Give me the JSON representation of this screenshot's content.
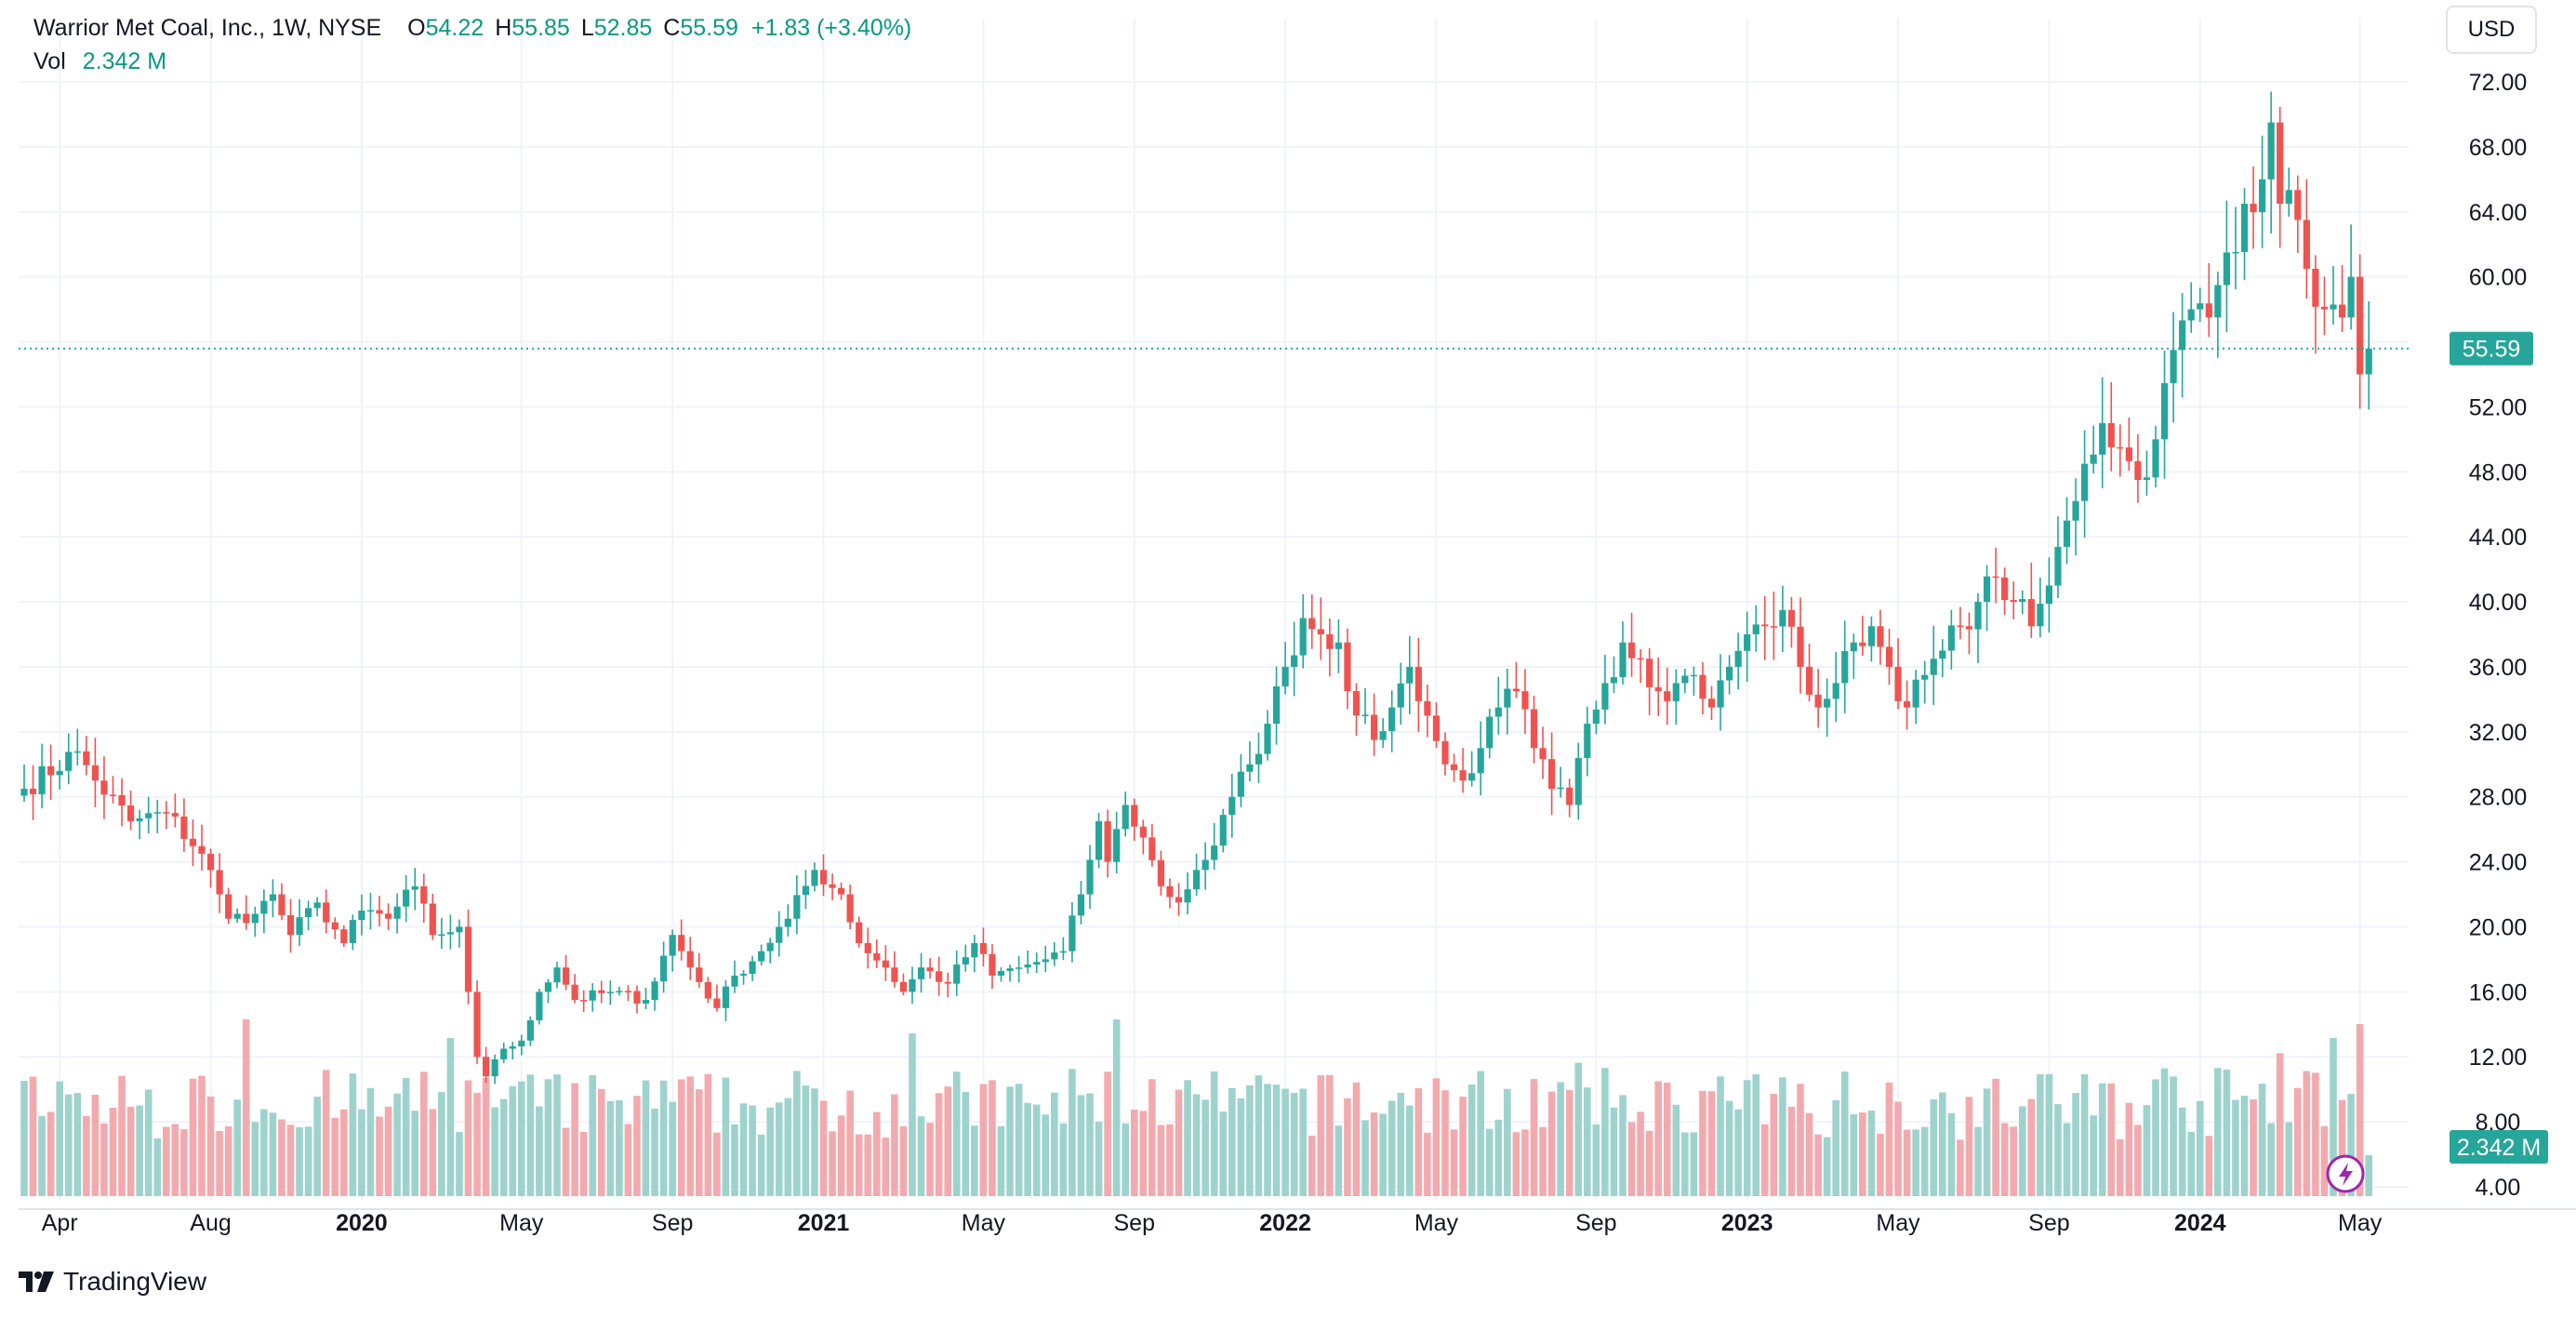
{
  "header": {
    "symbol": "Warrior Met Coal, Inc., 1W, NYSE",
    "o_label": "O",
    "o_value": "54.22",
    "h_label": "H",
    "h_value": "55.85",
    "l_label": "L",
    "l_value": "52.85",
    "c_label": "C",
    "c_value": "55.59",
    "change": "+1.83 (+3.40%)",
    "vol_label": "Vol",
    "vol_value": "2.342 M"
  },
  "currency_button": "USD",
  "brand": "TradingView",
  "colors": {
    "up": "#089981",
    "down": "#f23645",
    "up_candle": "#26a69a",
    "down_candle": "#ef5350",
    "up_volume": "#9ed3cd",
    "down_volume": "#f3aaae",
    "grid": "#f0f3fa",
    "text": "#131722",
    "last_price": "#26a69a"
  },
  "chart_data": {
    "type": "candlestick",
    "title": "Warrior Met Coal, Inc., 1W, NYSE",
    "interval": "1W",
    "currency": "USD",
    "y_ticks": [
      "72.00",
      "68.00",
      "64.00",
      "60.00",
      "56.00",
      "52.00",
      "48.00",
      "44.00",
      "40.00",
      "36.00",
      "32.00",
      "28.00",
      "24.00",
      "20.00",
      "16.00",
      "12.00",
      "8.00",
      "4.00"
    ],
    "ylim": [
      4,
      72
    ],
    "x_ticks": [
      {
        "label": "Apr",
        "bold": false
      },
      {
        "label": "Aug",
        "bold": false
      },
      {
        "label": "2020",
        "bold": true
      },
      {
        "label": "May",
        "bold": false
      },
      {
        "label": "Sep",
        "bold": false
      },
      {
        "label": "2021",
        "bold": true
      },
      {
        "label": "May",
        "bold": false
      },
      {
        "label": "Sep",
        "bold": false
      },
      {
        "label": "2022",
        "bold": true
      },
      {
        "label": "May",
        "bold": false
      },
      {
        "label": "Sep",
        "bold": false
      },
      {
        "label": "2023",
        "bold": true
      },
      {
        "label": "May",
        "bold": false
      },
      {
        "label": "Sep",
        "bold": false
      },
      {
        "label": "2024",
        "bold": true
      },
      {
        "label": "May",
        "bold": false
      }
    ],
    "last_price": 55.59,
    "last_price_label": "55.59",
    "last_volume_label": "2.342 M",
    "close_anchors": [
      [
        0,
        28.5
      ],
      [
        6,
        30.8
      ],
      [
        8,
        29.0
      ],
      [
        12,
        26.5
      ],
      [
        16,
        27.0
      ],
      [
        20,
        24.5
      ],
      [
        22,
        22.0
      ],
      [
        23,
        20.5
      ],
      [
        26,
        20.8
      ],
      [
        28,
        22.0
      ],
      [
        30,
        19.5
      ],
      [
        33,
        21.5
      ],
      [
        36,
        19.0
      ],
      [
        38,
        21.0
      ],
      [
        41,
        20.5
      ],
      [
        44,
        22.5
      ],
      [
        46,
        19.5
      ],
      [
        49,
        20.0
      ],
      [
        50,
        16.0
      ],
      [
        51,
        12.0
      ],
      [
        52,
        10.8
      ],
      [
        54,
        12.5
      ],
      [
        56,
        13.0
      ],
      [
        58,
        16.0
      ],
      [
        60,
        17.5
      ],
      [
        62,
        15.5
      ],
      [
        66,
        16.0
      ],
      [
        70,
        15.5
      ],
      [
        73,
        19.5
      ],
      [
        75,
        17.5
      ],
      [
        78,
        15.0
      ],
      [
        80,
        17.0
      ],
      [
        83,
        18.5
      ],
      [
        86,
        20.5
      ],
      [
        89,
        23.5
      ],
      [
        92,
        22.0
      ],
      [
        94,
        19.0
      ],
      [
        97,
        17.5
      ],
      [
        99,
        16.0
      ],
      [
        101,
        17.5
      ],
      [
        104,
        16.5
      ],
      [
        107,
        19.0
      ],
      [
        109,
        17.0
      ],
      [
        112,
        17.5
      ],
      [
        115,
        18.0
      ],
      [
        117,
        18.5
      ],
      [
        119,
        22.0
      ],
      [
        121,
        26.5
      ],
      [
        122,
        24.0
      ],
      [
        124,
        27.5
      ],
      [
        126,
        25.5
      ],
      [
        128,
        22.5
      ],
      [
        130,
        21.5
      ],
      [
        132,
        23.5
      ],
      [
        134,
        25.0
      ],
      [
        136,
        28.0
      ],
      [
        138,
        30.0
      ],
      [
        140,
        32.5
      ],
      [
        142,
        36.0
      ],
      [
        144,
        39.0
      ],
      [
        146,
        38.0
      ],
      [
        148,
        37.5
      ],
      [
        150,
        33.0
      ],
      [
        152,
        31.5
      ],
      [
        154,
        33.5
      ],
      [
        156,
        36.0
      ],
      [
        158,
        33.0
      ],
      [
        160,
        30.0
      ],
      [
        162,
        29.0
      ],
      [
        164,
        31.0
      ],
      [
        166,
        33.5
      ],
      [
        168,
        34.5
      ],
      [
        170,
        31.0
      ],
      [
        172,
        28.5
      ],
      [
        174,
        27.5
      ],
      [
        176,
        32.5
      ],
      [
        178,
        35.0
      ],
      [
        180,
        37.5
      ],
      [
        182,
        36.5
      ],
      [
        184,
        34.5
      ],
      [
        186,
        35.0
      ],
      [
        188,
        35.5
      ],
      [
        190,
        33.5
      ],
      [
        192,
        36.0
      ],
      [
        194,
        38.0
      ],
      [
        196,
        38.5
      ],
      [
        198,
        39.5
      ],
      [
        200,
        36.0
      ],
      [
        202,
        33.5
      ],
      [
        204,
        35.0
      ],
      [
        206,
        37.5
      ],
      [
        208,
        38.5
      ],
      [
        210,
        36.0
      ],
      [
        212,
        33.5
      ],
      [
        214,
        35.5
      ],
      [
        216,
        37.0
      ],
      [
        218,
        38.5
      ],
      [
        220,
        40.0
      ],
      [
        222,
        41.5
      ],
      [
        224,
        40.0
      ],
      [
        226,
        38.5
      ],
      [
        228,
        41.0
      ],
      [
        230,
        45.0
      ],
      [
        232,
        48.5
      ],
      [
        234,
        51.0
      ],
      [
        236,
        49.5
      ],
      [
        238,
        47.5
      ],
      [
        240,
        50.0
      ],
      [
        242,
        55.5
      ],
      [
        244,
        58.0
      ],
      [
        246,
        57.5
      ],
      [
        248,
        61.5
      ],
      [
        250,
        64.5
      ],
      [
        252,
        66.0
      ],
      [
        253,
        69.5
      ],
      [
        254,
        64.5
      ],
      [
        256,
        63.5
      ],
      [
        257,
        60.5
      ],
      [
        259,
        58.0
      ],
      [
        261,
        57.5
      ],
      [
        262,
        60.0
      ],
      [
        263,
        54.0
      ],
      [
        264,
        55.59
      ]
    ],
    "volume_axis_note": "volume bars share bottom pane; last volume 2.342 M"
  }
}
